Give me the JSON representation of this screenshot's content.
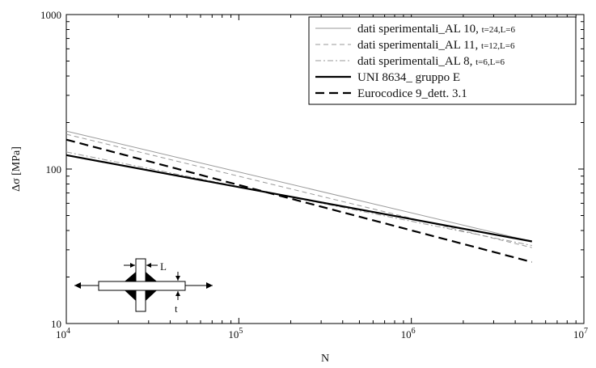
{
  "chart_data": {
    "type": "line",
    "xscale": "log",
    "yscale": "log",
    "xlim": [
      10000,
      10000000
    ],
    "ylim": [
      10,
      1000
    ],
    "xlabel": "N",
    "ylabel": "Δσ [MPa]",
    "x_ticks": [
      {
        "base": "10",
        "exp": "4",
        "value": 10000
      },
      {
        "base": "10",
        "exp": "5",
        "value": 100000
      },
      {
        "base": "10",
        "exp": "6",
        "value": 1000000
      },
      {
        "base": "10",
        "exp": "7",
        "value": 10000000
      }
    ],
    "y_ticks": [
      {
        "label": "10",
        "value": 10
      },
      {
        "label": "100",
        "value": 100
      },
      {
        "label": "1000",
        "value": 1000
      }
    ],
    "grid": false,
    "legend_position": "top-right",
    "series": [
      {
        "name": "dati sperimentali_AL 10, ",
        "name_small": "t=24,L=6",
        "style": "solid-thin",
        "color": "#9a9a9a",
        "x": [
          10000,
          5000000
        ],
        "y": [
          176,
          34
        ]
      },
      {
        "name": "dati sperimentali_AL 11, ",
        "name_small": "t=12,L=6",
        "style": "dashed-thin",
        "color": "#9a9a9a",
        "x": [
          10000,
          5000000
        ],
        "y": [
          168,
          31
        ]
      },
      {
        "name": "dati sperimentali_AL 8, ",
        "name_small": "t=6,L=6",
        "style": "dashdot-thin",
        "color": "#9a9a9a",
        "x": [
          10000,
          5000000
        ],
        "y": [
          129,
          32
        ]
      },
      {
        "name": "UNI 8634_ gruppo E",
        "name_small": "",
        "style": "solid-thick",
        "color": "#000000",
        "x": [
          10000,
          5000000
        ],
        "y": [
          123,
          34
        ]
      },
      {
        "name": "Eurocodice 9_dett. 3.1",
        "name_small": "",
        "style": "dashed-thick",
        "color": "#000000",
        "x": [
          10000,
          5000000
        ],
        "y": [
          155,
          25
        ]
      }
    ],
    "inset_labels": {
      "L": "L",
      "t": "t"
    }
  }
}
